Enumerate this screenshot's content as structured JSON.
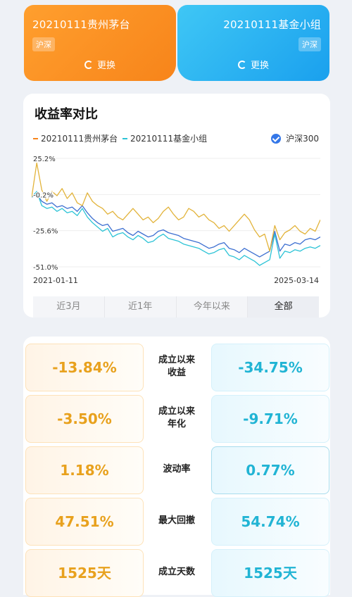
{
  "compare": {
    "left": {
      "name": "20210111贵州茅台",
      "badge": "沪深",
      "swap_label": "更换",
      "color": "#f7841a"
    },
    "right": {
      "name": "20210111基金小组",
      "badge": "沪深",
      "swap_label": "更换",
      "color": "#1aa0ee"
    }
  },
  "chart_section": {
    "title": "收益率对比",
    "legend": {
      "series_a": "20210111贵州茅台",
      "series_b": "20210111基金小组",
      "benchmark": "沪深300"
    },
    "range_tabs": [
      "近3月",
      "近1年",
      "今年以来",
      "全部"
    ],
    "active_tab": "全部"
  },
  "chart_data": {
    "type": "line",
    "x_start": "2021-01-11",
    "x_end": "2025-03-14",
    "y_ticks": [
      "25.2%",
      "-0.2%",
      "-25.6%",
      "-51.0%"
    ],
    "ylim": [
      -51.0,
      25.2
    ],
    "grid": true,
    "legend_position": "top",
    "series": [
      {
        "name": "20210111贵州茅台",
        "color": "#e2b33a",
        "values": [
          -2,
          22,
          3,
          -5,
          2,
          -1,
          4,
          -3,
          1,
          -6,
          -8,
          1,
          -5,
          -8,
          -10,
          -14,
          -12,
          -16,
          -18,
          -14,
          -10,
          -14,
          -18,
          -16,
          -20,
          -17,
          -12,
          -9,
          -14,
          -18,
          -16,
          -10,
          -12,
          -16,
          -14,
          -18,
          -20,
          -24,
          -22,
          -26,
          -22,
          -18,
          -14,
          -18,
          -25,
          -30,
          -28,
          -40,
          -22,
          -32,
          -27,
          -25,
          -22,
          -26,
          -28,
          -24,
          -26,
          -18
        ]
      },
      {
        "name": "20210111基金小组",
        "color": "#2cc3d6",
        "values": [
          -2,
          2,
          -8,
          -10,
          -9,
          -12,
          -10,
          -13,
          -12,
          -15,
          -10,
          -16,
          -20,
          -23,
          -26,
          -24,
          -30,
          -28,
          -27,
          -30,
          -32,
          -29,
          -31,
          -34,
          -33,
          -30,
          -28,
          -31,
          -32,
          -33,
          -35,
          -36,
          -37,
          -38,
          -40,
          -42,
          -41,
          -39,
          -38,
          -43,
          -44,
          -46,
          -43,
          -45,
          -47,
          -50,
          -48,
          -46,
          -28,
          -45,
          -40,
          -41,
          -39,
          -40,
          -38,
          -37,
          -38,
          -36
        ]
      },
      {
        "name": "沪深300",
        "color": "#3d6fd1",
        "values": [
          -2,
          0,
          -5,
          -7,
          -6,
          -9,
          -8,
          -10,
          -9,
          -12,
          -8,
          -13,
          -17,
          -20,
          -22,
          -21,
          -26,
          -25,
          -24,
          -27,
          -29,
          -26,
          -28,
          -30,
          -29,
          -26,
          -25,
          -27,
          -28,
          -29,
          -31,
          -32,
          -33,
          -34,
          -36,
          -38,
          -37,
          -35,
          -34,
          -38,
          -39,
          -41,
          -38,
          -40,
          -42,
          -44,
          -42,
          -40,
          -26,
          -40,
          -35,
          -36,
          -34,
          -35,
          -32,
          -31,
          -32,
          -30
        ]
      }
    ]
  },
  "stats": [
    {
      "label": "成立以来\n收益",
      "left": "-13.84%",
      "right": "-34.75%"
    },
    {
      "label": "成立以来\n年化",
      "left": "-3.50%",
      "right": "-9.71%"
    },
    {
      "label": "波动率",
      "left": "1.18%",
      "right": "0.77%"
    },
    {
      "label": "最大回撤",
      "left": "47.51%",
      "right": "54.74%"
    },
    {
      "label": "成立天数",
      "left": "1525天",
      "right": "1525天"
    }
  ]
}
